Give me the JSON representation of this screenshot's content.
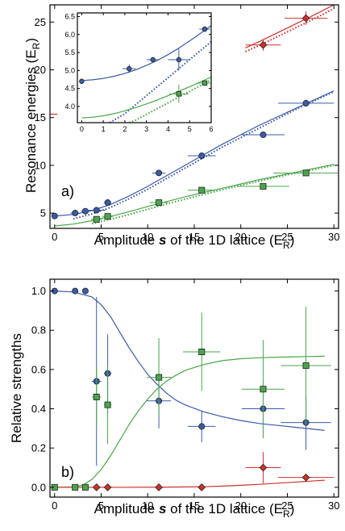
{
  "colors": {
    "blue": "#3a5ba8",
    "green": "#4aa64a",
    "red": "#d0302c",
    "mark_edge": "#222222"
  },
  "chart_data": [
    {
      "type": "scatter",
      "panel_label": "a)",
      "xlabel_pre": "Amplitude ",
      "xlabel_s": "s",
      "xlabel_post": " of the 1D lattice (E",
      "xlabel_sub": "R",
      "xlabel_close": ")",
      "ylabel": "Resonance energies (E",
      "ylabel_sub": "R",
      "ylabel_close": ")",
      "xlim": [
        -0.5,
        30.5
      ],
      "ylim": [
        3.4,
        26.8
      ],
      "xticks": [
        0,
        5,
        10,
        15,
        20,
        25,
        30
      ],
      "xtick_labels": [
        "0",
        "5",
        "10",
        "15",
        "20",
        "25",
        "30"
      ],
      "yticks": [
        5,
        10,
        15,
        20,
        25
      ],
      "ytick_labels": [
        "5",
        "10",
        "15",
        "20",
        "25"
      ],
      "series": [
        {
          "color": "blue",
          "marker": "circle",
          "x": [
            0,
            2.2,
            3.3,
            4.5,
            5.7,
            11.2,
            15.8,
            22.4,
            27.0
          ],
          "y": [
            4.7,
            5.0,
            5.2,
            5.3,
            6.1,
            9.2,
            11.0,
            13.2,
            16.5
          ],
          "xerr": [
            0,
            0.5,
            0.5,
            1.0,
            0.4,
            0.7,
            1.5,
            2.3,
            3.0
          ],
          "yerr": [
            0,
            0,
            0,
            0.15,
            0.2,
            0.2,
            0.25,
            0.3,
            0.35
          ]
        },
        {
          "color": "green",
          "marker": "square",
          "x": [
            4.5,
            5.7,
            11.2,
            15.8,
            22.4,
            27.0
          ],
          "y": [
            4.35,
            4.65,
            6.1,
            7.4,
            7.8,
            9.2
          ],
          "xerr": [
            0.6,
            0.6,
            1.0,
            1.5,
            2.8,
            3.5
          ],
          "yerr": [
            0.15,
            0.1,
            0.15,
            0.15,
            0.15,
            0.2
          ]
        },
        {
          "color": "red",
          "marker": "diamond",
          "x": [
            22.4,
            27.0
          ],
          "y": [
            22.6,
            25.4
          ],
          "xerr": [
            1.9,
            2.3
          ],
          "yerr": [
            0.6,
            0.7
          ]
        }
      ],
      "curves": [
        {
          "color": "blue",
          "style": "solid",
          "x": [
            0,
            2,
            4,
            6,
            8,
            10,
            12,
            14,
            16,
            18,
            20,
            22,
            24,
            26,
            28,
            30
          ],
          "y": [
            4.7,
            4.85,
            5.25,
            5.9,
            6.8,
            7.8,
            8.9,
            10.0,
            11.1,
            12.2,
            13.2,
            14.2,
            15.1,
            16.0,
            16.9,
            17.8
          ]
        },
        {
          "color": "blue",
          "style": "dotted",
          "x": [
            2,
            4,
            6,
            8,
            10,
            12,
            14,
            16,
            18,
            20,
            22,
            24,
            26,
            28,
            30
          ],
          "y": [
            4.4,
            4.9,
            5.6,
            6.5,
            7.5,
            8.6,
            9.7,
            10.8,
            11.9,
            12.9,
            13.9,
            14.9,
            15.9,
            16.8,
            17.7
          ]
        },
        {
          "color": "green",
          "style": "solid",
          "x": [
            0,
            2,
            4,
            6,
            8,
            10,
            12,
            14,
            16,
            18,
            20,
            22,
            24,
            26,
            28,
            30
          ],
          "y": [
            3.65,
            3.85,
            4.2,
            4.65,
            5.15,
            5.7,
            6.2,
            6.7,
            7.15,
            7.6,
            8.05,
            8.5,
            8.9,
            9.3,
            9.7,
            10.1
          ]
        },
        {
          "color": "green",
          "style": "dotted",
          "x": [
            4,
            6,
            8,
            10,
            12,
            14,
            16,
            18,
            20,
            22,
            24,
            26,
            28,
            30
          ],
          "y": [
            3.9,
            4.35,
            4.85,
            5.4,
            5.95,
            6.45,
            6.95,
            7.45,
            7.9,
            8.35,
            8.8,
            9.2,
            9.6,
            10.0
          ]
        },
        {
          "color": "red",
          "style": "solid",
          "x": [
            20.5,
            22,
            24,
            26,
            28,
            30
          ],
          "y": [
            22.3,
            22.95,
            23.9,
            24.85,
            25.8,
            26.8
          ]
        },
        {
          "color": "red",
          "style": "dotted",
          "x": [
            20.5,
            22,
            24,
            26,
            28,
            30
          ],
          "y": [
            21.9,
            22.55,
            23.5,
            24.45,
            25.4,
            26.4
          ]
        },
        {
          "color": "red",
          "style": "solid",
          "x": [
            -0.5,
            0.3
          ],
          "y": [
            15.35,
            15.35
          ]
        }
      ],
      "inset": {
        "xlim": [
          -0.2,
          6.0
        ],
        "ylim": [
          3.55,
          6.6
        ],
        "xticks": [
          0,
          1,
          2,
          3,
          4,
          5,
          6
        ],
        "xtick_labels": [
          "0",
          "1",
          "2",
          "3",
          "4",
          "5",
          "6"
        ],
        "yticks": [
          4.0,
          4.5,
          5.0,
          5.5,
          6.0,
          6.5
        ],
        "ytick_labels": [
          "4.0",
          "4.5",
          "5.0",
          "5.5",
          "6.0",
          "6.5"
        ],
        "series": [
          {
            "color": "blue",
            "marker": "circle",
            "x": [
              0,
              2.2,
              3.3,
              4.5,
              5.7
            ],
            "y": [
              4.7,
              5.05,
              5.3,
              5.3,
              6.15
            ],
            "xerr": [
              0,
              0.3,
              0.3,
              0.5,
              0.25
            ],
            "yerr": [
              0,
              0.12,
              0,
              0.3,
              0.08
            ]
          },
          {
            "color": "green",
            "marker": "square",
            "x": [
              4.5,
              5.7
            ],
            "y": [
              4.35,
              4.65
            ],
            "xerr": [
              0.45,
              0.3
            ],
            "yerr": [
              0.25,
              0
            ]
          }
        ],
        "curves": [
          {
            "color": "blue",
            "style": "solid",
            "x": [
              0,
              0.5,
              1,
              1.5,
              2,
              2.5,
              3,
              3.5,
              4,
              4.5,
              5,
              5.5,
              6
            ],
            "y": [
              4.72,
              4.74,
              4.78,
              4.84,
              4.92,
              5.02,
              5.14,
              5.28,
              5.44,
              5.62,
              5.82,
              6.03,
              6.25
            ]
          },
          {
            "color": "blue",
            "style": "dotted",
            "x": [
              1.3,
              2,
              2.5,
              3,
              3.5,
              4,
              4.5,
              5,
              5.5,
              6
            ],
            "y": [
              3.55,
              3.8,
              4.05,
              4.3,
              4.55,
              4.8,
              5.05,
              5.3,
              5.55,
              5.8
            ]
          },
          {
            "color": "green",
            "style": "solid",
            "x": [
              0,
              0.5,
              1,
              1.5,
              2,
              2.5,
              3,
              3.5,
              4,
              4.5,
              5,
              5.5,
              6
            ],
            "y": [
              3.68,
              3.7,
              3.74,
              3.8,
              3.88,
              3.97,
              4.07,
              4.18,
              4.3,
              4.42,
              4.55,
              4.68,
              4.82
            ]
          },
          {
            "color": "green",
            "style": "dotted",
            "x": [
              2.2,
              2.5,
              3,
              3.5,
              4,
              4.5,
              5,
              5.5,
              6
            ],
            "y": [
              3.55,
              3.62,
              3.78,
              3.94,
              4.1,
              4.26,
              4.42,
              4.58,
              4.74
            ]
          }
        ]
      }
    },
    {
      "type": "scatter",
      "panel_label": "b)",
      "xlabel_pre": "Amplitude ",
      "xlabel_s": "s",
      "xlabel_post": " of the 1D lattice (E",
      "xlabel_sub": "R",
      "xlabel_close": ")",
      "ylabel": "Relative strengths",
      "xlim": [
        -0.5,
        30.5
      ],
      "ylim": [
        -0.05,
        1.06
      ],
      "xticks": [
        0,
        5,
        10,
        15,
        20,
        25,
        30
      ],
      "xtick_labels": [
        "0",
        "5",
        "10",
        "15",
        "20",
        "25",
        "30"
      ],
      "yticks": [
        0.0,
        0.2,
        0.4,
        0.6,
        0.8,
        1.0
      ],
      "ytick_labels": [
        "0.0",
        "0.2",
        "0.4",
        "0.6",
        "0.8",
        "1.0"
      ],
      "series": [
        {
          "color": "blue",
          "marker": "circle",
          "x": [
            0,
            2.2,
            3.3,
            4.5,
            5.7,
            11.2,
            15.8,
            22.4,
            27.0
          ],
          "y": [
            1.0,
            1.0,
            1.0,
            0.54,
            0.58,
            0.44,
            0.31,
            0.4,
            0.33
          ],
          "xerr": [
            0,
            0,
            0,
            0.5,
            0.4,
            1.3,
            1.5,
            2.3,
            2.7
          ],
          "yerr": [
            0,
            0,
            0,
            0.43,
            0.2,
            0.14,
            0.08,
            0.14,
            0.14
          ]
        },
        {
          "color": "green",
          "marker": "square",
          "x": [
            0,
            2.2,
            3.3,
            4.5,
            5.7,
            11.2,
            15.8,
            22.4,
            27.0
          ],
          "y": [
            0,
            0,
            0,
            0.46,
            0.42,
            0.56,
            0.69,
            0.5,
            0.62
          ],
          "xerr": [
            0,
            0,
            0,
            0.5,
            0.4,
            1.3,
            2.0,
            2.3,
            2.7
          ],
          "yerr": [
            0,
            0,
            0,
            0.15,
            0.2,
            0.2,
            0.2,
            0.25,
            0.3
          ]
        },
        {
          "color": "red",
          "marker": "diamond",
          "x": [
            4.5,
            5.7,
            11.2,
            15.8,
            22.4,
            27.0
          ],
          "y": [
            0,
            0,
            0,
            0,
            0.1,
            0.05
          ],
          "xerr": [
            0,
            0,
            0,
            0,
            1.9,
            3.0
          ],
          "yerr": [
            0,
            0,
            0,
            0,
            0.08,
            0
          ]
        }
      ],
      "curves": [
        {
          "color": "blue",
          "style": "solid",
          "x": [
            0,
            2,
            4,
            5,
            6,
            7,
            8,
            9,
            10,
            11,
            12,
            13,
            14,
            16,
            18,
            20,
            22,
            24,
            26,
            28,
            29
          ],
          "y": [
            1.0,
            0.995,
            0.97,
            0.93,
            0.87,
            0.79,
            0.71,
            0.64,
            0.575,
            0.525,
            0.48,
            0.445,
            0.42,
            0.385,
            0.36,
            0.34,
            0.325,
            0.315,
            0.305,
            0.295,
            0.29
          ]
        },
        {
          "color": "green",
          "style": "solid",
          "x": [
            0,
            2,
            3,
            4,
            5,
            6,
            7,
            8,
            9,
            10,
            11,
            12,
            13,
            14,
            16,
            18,
            20,
            22,
            24,
            26,
            28,
            29
          ],
          "y": [
            0.0,
            0.002,
            0.01,
            0.04,
            0.09,
            0.16,
            0.24,
            0.32,
            0.39,
            0.45,
            0.5,
            0.54,
            0.57,
            0.595,
            0.625,
            0.645,
            0.655,
            0.66,
            0.663,
            0.665,
            0.667,
            0.668
          ]
        },
        {
          "color": "red",
          "style": "solid",
          "x": [
            0,
            4,
            8,
            12,
            16,
            18,
            20,
            22,
            24,
            26,
            28,
            29
          ],
          "y": [
            0.0,
            0.0,
            0.0,
            0.001,
            0.003,
            0.006,
            0.01,
            0.015,
            0.021,
            0.027,
            0.033,
            0.036
          ]
        }
      ]
    }
  ]
}
